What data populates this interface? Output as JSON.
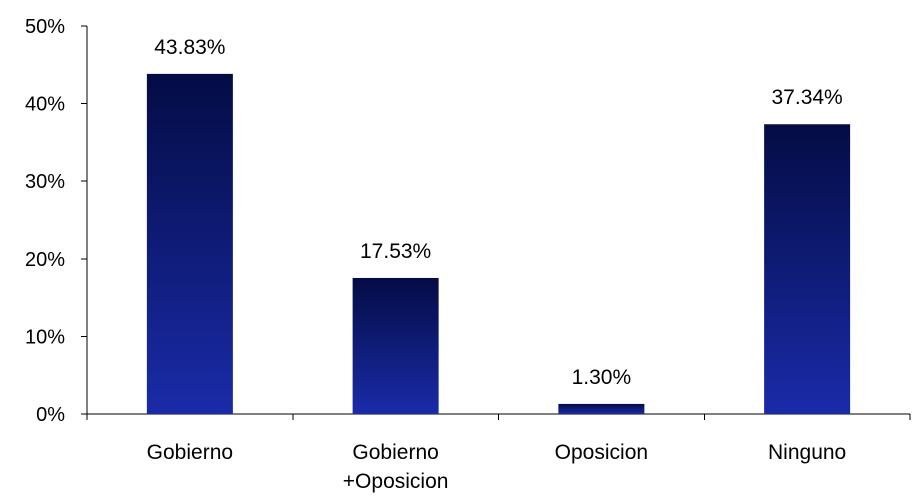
{
  "chart_data": {
    "type": "bar",
    "categories": [
      [
        "Gobierno"
      ],
      [
        "Gobierno",
        "+Oposicion"
      ],
      [
        "Oposicion"
      ],
      [
        "Ninguno"
      ]
    ],
    "values": [
      43.83,
      17.53,
      1.3,
      37.34
    ],
    "data_labels": [
      "43.83%",
      "17.53%",
      "1.30%",
      "37.34%"
    ],
    "ylim": [
      0,
      50
    ],
    "yticks": [
      0,
      10,
      20,
      30,
      40,
      50
    ],
    "ytick_labels": [
      "0%",
      "10%",
      "20%",
      "30%",
      "40%",
      "50%"
    ],
    "title": "",
    "xlabel": "",
    "ylabel": "",
    "grid": false,
    "legend": "none",
    "bar_gradient": [
      "#040c45",
      "#1a2ba8"
    ]
  }
}
